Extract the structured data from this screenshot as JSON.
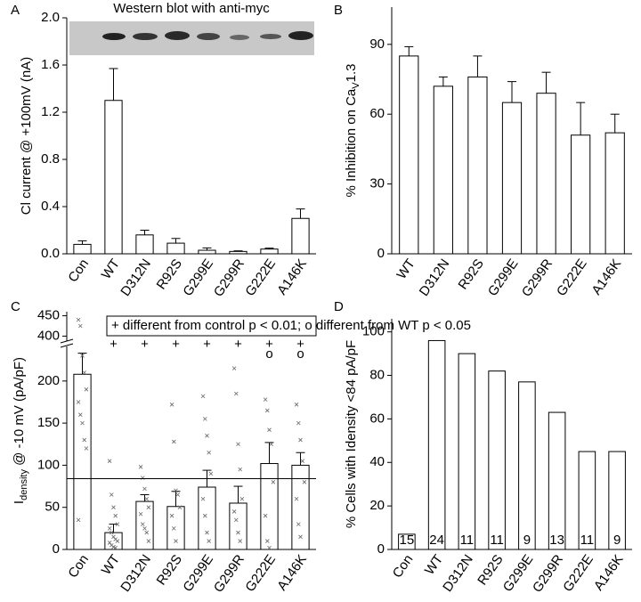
{
  "chart_data": [
    {
      "type": "bar",
      "panel": "A",
      "title": "Western blot with anti-myc",
      "ylabel": [
        "Cl current @ +100mV (nA)"
      ],
      "categories": [
        "Con",
        "WT",
        "D312N",
        "R92S",
        "G299E",
        "G299R",
        "G222E",
        "A146K"
      ],
      "values": [
        0.08,
        1.3,
        0.16,
        0.09,
        0.03,
        0.02,
        0.04,
        0.3
      ],
      "errors": [
        0.03,
        0.27,
        0.04,
        0.04,
        0.02,
        0.005,
        0.008,
        0.08
      ],
      "color": "#ffffff",
      "edgecolor": "#000000",
      "ylim": [
        0,
        2.0
      ],
      "yticks": [
        {
          "value": 0,
          "label": "0.0"
        },
        0.4,
        0.8,
        1.2,
        1.6,
        {
          "value": 2,
          "label": "2.0"
        }
      ]
    },
    {
      "type": "bar",
      "panel": "B",
      "ylabel": [
        "% Inhibition on Ca",
        "V",
        "1.3"
      ],
      "categories": [
        "WT",
        "D312N",
        "R92S",
        "G299E",
        "G299R",
        "G222E",
        "A146K"
      ],
      "values": [
        85,
        72,
        76,
        65,
        69,
        51,
        52
      ],
      "errors": [
        4,
        4,
        9,
        9,
        9,
        14,
        8
      ],
      "color": "#ffffff",
      "edgecolor": "#000000",
      "ylim": [
        0,
        106
      ],
      "yticks": [
        0,
        30,
        60,
        90
      ]
    },
    {
      "type": "bar",
      "panel": "C",
      "ylabel": [
        "I",
        "density",
        " @ -10 mV (pA/pF)"
      ],
      "legend_text": "+ different from control p < 0.01; o different from WT p < 0.05",
      "categories": [
        "Con",
        "WT",
        "D312N",
        "R92S",
        "G299E",
        "G299R",
        "G222E",
        "A146K"
      ],
      "values": [
        208,
        20,
        57,
        51,
        74,
        55,
        102,
        100
      ],
      "errors": [
        25,
        10,
        8,
        18,
        20,
        20,
        25,
        15
      ],
      "points": [
        [
          440,
          425,
          230,
          210,
          190,
          175,
          160,
          150,
          130,
          120,
          35
        ],
        [
          105,
          65,
          50,
          40,
          30,
          25,
          20,
          15,
          12,
          10,
          8,
          5,
          3,
          2
        ],
        [
          98,
          85,
          72,
          60,
          50,
          42,
          30,
          25,
          20,
          10
        ],
        [
          172,
          128,
          70,
          65,
          50,
          40,
          25,
          10
        ],
        [
          182,
          155,
          135,
          115,
          90,
          60,
          40,
          20,
          10
        ],
        [
          215,
          185,
          125,
          95,
          60,
          45,
          35,
          20,
          10
        ],
        [
          178,
          165,
          142,
          125,
          80,
          40,
          10,
          2
        ],
        [
          172,
          150,
          130,
          105,
          80,
          60,
          30,
          15
        ]
      ],
      "sig_markers": [
        [
          null,
          "+",
          "+",
          "+",
          "+",
          "+",
          "+",
          "+"
        ],
        [
          null,
          null,
          null,
          null,
          null,
          null,
          "o",
          "o"
        ]
      ],
      "hline": 84,
      "color": "#ffffff",
      "edgecolor": "#000000",
      "ylim": [
        0,
        240
      ],
      "yticks": [
        0,
        50,
        100,
        150,
        200
      ],
      "ylim_upper": [
        390,
        460
      ],
      "yticks_upper": [
        400,
        450
      ]
    },
    {
      "type": "bar",
      "panel": "D",
      "ylabel": [
        "% Cells with Idensity <84 pA/pF"
      ],
      "categories": [
        "Con",
        "WT",
        "D312N",
        "R92S",
        "G299E",
        "G299R",
        "G222E",
        "A146K"
      ],
      "values": [
        7,
        96,
        90,
        82,
        77,
        63,
        45,
        45
      ],
      "bar_labels": [
        15,
        24,
        11,
        11,
        9,
        13,
        11,
        9
      ],
      "color": "#ffffff",
      "edgecolor": "#000000",
      "ylim": [
        0,
        106
      ],
      "yticks": [
        0,
        20,
        40,
        60,
        80,
        100
      ]
    }
  ]
}
